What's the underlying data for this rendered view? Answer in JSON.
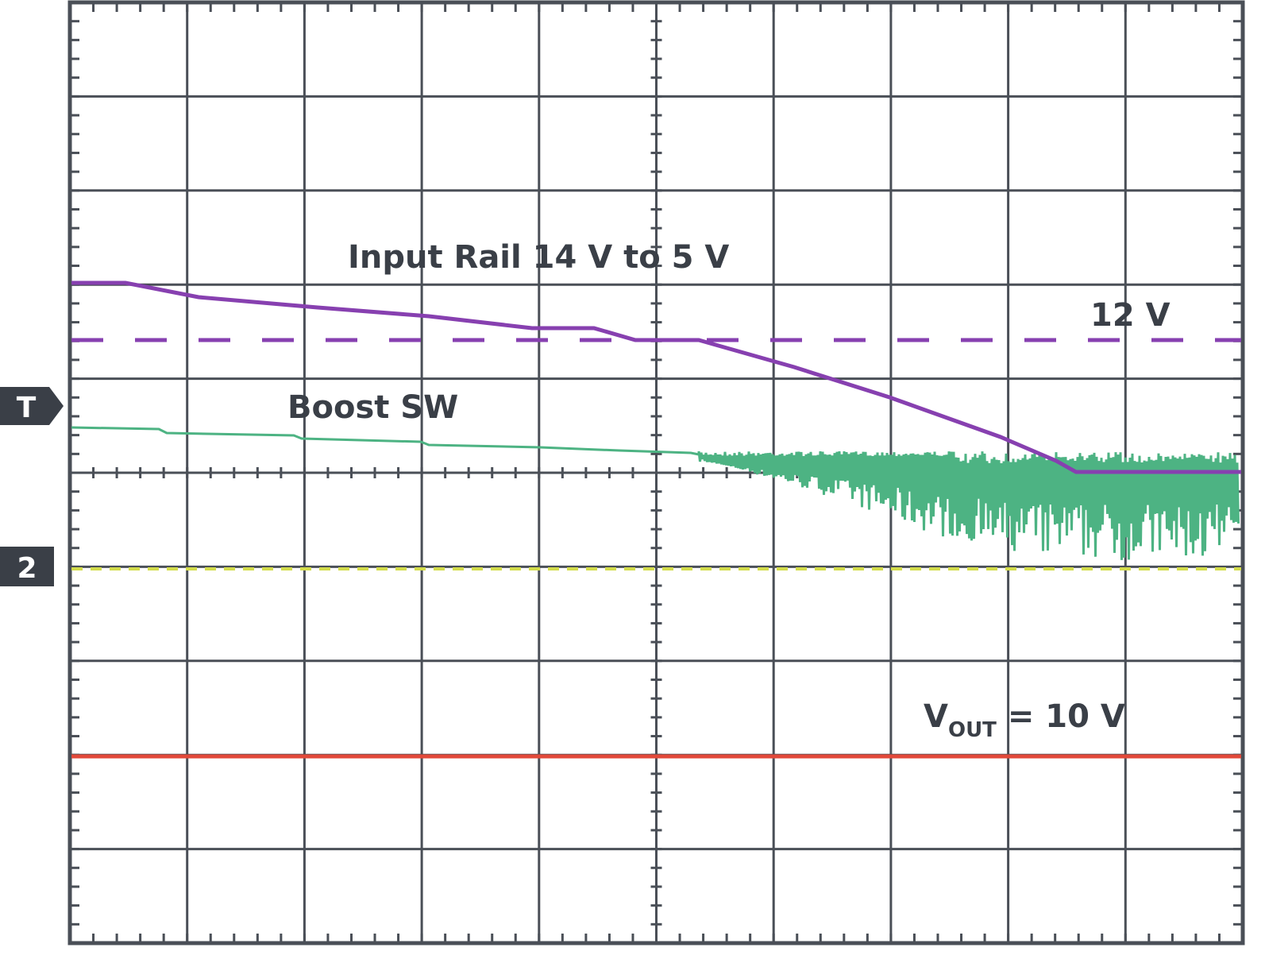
{
  "labels": {
    "input_rail": "Input Rail 14 V to 5 V",
    "boost_sw": "Boost SW",
    "level_12v": "12 V",
    "vout_v": "V",
    "vout_sub": "OUT",
    "vout_rest": " = 10 V"
  },
  "markers": {
    "trigger": "T",
    "channel": "2"
  }
}
